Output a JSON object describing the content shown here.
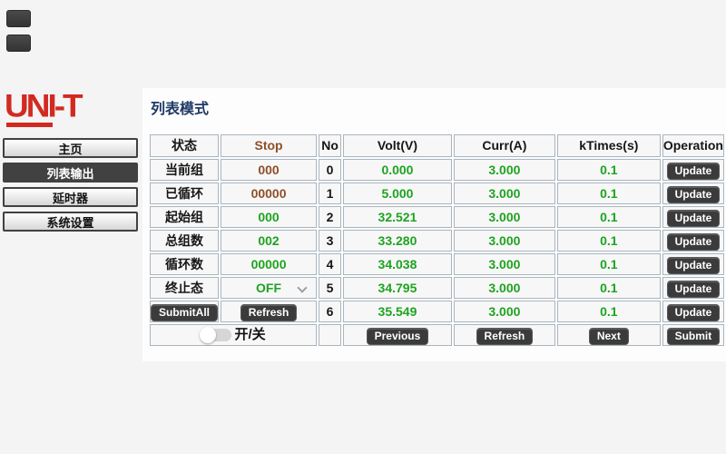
{
  "sidebar": {
    "logo_text": "UNI-T",
    "items": [
      {
        "label": "主页",
        "active": false
      },
      {
        "label": "列表输出",
        "active": true
      },
      {
        "label": "延时器",
        "active": false
      },
      {
        "label": "系统设置",
        "active": false
      }
    ]
  },
  "main": {
    "page_title": "列表模式"
  },
  "status_panel": {
    "header_label": "状态",
    "header_value": "Stop",
    "rows": [
      {
        "label": "当前组",
        "value": "000",
        "color": "brown"
      },
      {
        "label": "已循环",
        "value": "00000",
        "color": "brown"
      },
      {
        "label": "起始组",
        "value": "000",
        "color": "green"
      },
      {
        "label": "总组数",
        "value": "002",
        "color": "green"
      },
      {
        "label": "循环数",
        "value": "00000",
        "color": "green"
      },
      {
        "label": "终止态",
        "value": "OFF",
        "color": "green",
        "dropdown": true
      }
    ],
    "submit_all_button": "SubmitAll",
    "refresh_button": "Refresh",
    "power_toggle_label": "开/关",
    "power_toggle_state": "off"
  },
  "list_table": {
    "columns": {
      "no": "No",
      "volt": "Volt(V)",
      "curr": "Curr(A)",
      "ktimes": "kTimes(s)",
      "operation": "Operation"
    },
    "rows": [
      {
        "no": "0",
        "volt": "0.000",
        "curr": "3.000",
        "ktimes": "0.1",
        "update_button": "Update"
      },
      {
        "no": "1",
        "volt": "5.000",
        "curr": "3.000",
        "ktimes": "0.1",
        "update_button": "Update"
      },
      {
        "no": "2",
        "volt": "32.521",
        "curr": "3.000",
        "ktimes": "0.1",
        "update_button": "Update"
      },
      {
        "no": "3",
        "volt": "33.280",
        "curr": "3.000",
        "ktimes": "0.1",
        "update_button": "Update"
      },
      {
        "no": "4",
        "volt": "34.038",
        "curr": "3.000",
        "ktimes": "0.1",
        "update_button": "Update"
      },
      {
        "no": "5",
        "volt": "34.795",
        "curr": "3.000",
        "ktimes": "0.1",
        "update_button": "Update"
      },
      {
        "no": "6",
        "volt": "35.549",
        "curr": "3.000",
        "ktimes": "0.1",
        "update_button": "Update"
      }
    ],
    "footer": {
      "previous_button": "Previous",
      "refresh_button": "Refresh",
      "next_button": "Next",
      "submit_button": "Submit"
    }
  },
  "colors": {
    "accent_red": "#d22a21",
    "value_green": "#1ea31e",
    "value_brown": "#8e4f28",
    "title_navy": "#1f3a66",
    "button_dark": "#3b3b3b",
    "table_border": "#a9b5bd"
  }
}
